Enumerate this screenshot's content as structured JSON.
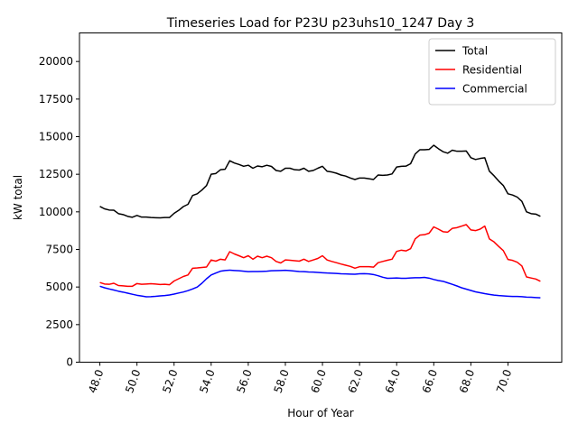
{
  "chart_data": {
    "type": "line",
    "title": "Timeseries Load for P23U p23uhs10_1247  Day 3",
    "xlabel": "Hour of Year",
    "ylabel": "kW total",
    "xlim": [
      46.9,
      72.9
    ],
    "ylim": [
      0,
      21900
    ],
    "x_ticks": [
      48,
      50,
      52,
      54,
      56,
      58,
      60,
      62,
      64,
      66,
      68,
      70
    ],
    "x_tick_labels": [
      "48.0",
      "50.0",
      "52.0",
      "54.0",
      "56.0",
      "58.0",
      "60.0",
      "62.0",
      "64.0",
      "66.0",
      "68.0",
      "70.0"
    ],
    "y_ticks": [
      0,
      2500,
      5000,
      7500,
      10000,
      12500,
      15000,
      17500,
      20000
    ],
    "y_tick_labels": [
      "0",
      "2500",
      "5000",
      "7500",
      "10000",
      "12500",
      "15000",
      "17500",
      "20000"
    ],
    "legend_position": "top-right",
    "x_start": 48,
    "x_step": 0.25,
    "series": [
      {
        "name": "Total",
        "color": "#000000",
        "values": [
          10360,
          10200,
          10120,
          10110,
          9880,
          9820,
          9700,
          9640,
          9760,
          9650,
          9650,
          9620,
          9610,
          9600,
          9620,
          9620,
          9900,
          10100,
          10350,
          10500,
          11090,
          11200,
          11450,
          11750,
          12500,
          12550,
          12800,
          12830,
          13400,
          13250,
          13150,
          13030,
          13100,
          12900,
          13050,
          13000,
          13100,
          13020,
          12750,
          12700,
          12900,
          12900,
          12800,
          12780,
          12900,
          12700,
          12750,
          12900,
          13030,
          12700,
          12650,
          12570,
          12450,
          12380,
          12250,
          12150,
          12250,
          12250,
          12200,
          12150,
          12450,
          12430,
          12450,
          12520,
          12980,
          13030,
          13040,
          13200,
          13850,
          14130,
          14130,
          14150,
          14430,
          14200,
          14000,
          13900,
          14100,
          14030,
          14030,
          14050,
          13600,
          13480,
          13550,
          13600,
          12700,
          12400,
          12050,
          11750,
          11200,
          11120,
          10980,
          10700,
          10000,
          9880,
          9850,
          9700
        ]
      },
      {
        "name": "Residential",
        "color": "#ff0000",
        "values": [
          5300,
          5200,
          5180,
          5250,
          5100,
          5080,
          5050,
          5050,
          5230,
          5180,
          5200,
          5220,
          5200,
          5170,
          5180,
          5150,
          5400,
          5550,
          5700,
          5800,
          6250,
          6270,
          6300,
          6330,
          6800,
          6720,
          6850,
          6800,
          7350,
          7200,
          7080,
          6950,
          7080,
          6850,
          7050,
          6950,
          7050,
          6950,
          6700,
          6600,
          6800,
          6780,
          6750,
          6720,
          6850,
          6700,
          6800,
          6900,
          7080,
          6800,
          6700,
          6620,
          6530,
          6450,
          6370,
          6250,
          6350,
          6350,
          6350,
          6320,
          6620,
          6700,
          6780,
          6850,
          7370,
          7450,
          7400,
          7550,
          8200,
          8450,
          8480,
          8580,
          9000,
          8850,
          8680,
          8650,
          8900,
          8950,
          9050,
          9150,
          8800,
          8750,
          8850,
          9050,
          8200,
          8000,
          7700,
          7420,
          6830,
          6770,
          6650,
          6400,
          5670,
          5600,
          5530,
          5380
        ]
      },
      {
        "name": "Commercial",
        "color": "#0000ff",
        "values": [
          5050,
          4950,
          4870,
          4800,
          4720,
          4660,
          4590,
          4520,
          4450,
          4400,
          4350,
          4360,
          4380,
          4410,
          4430,
          4470,
          4530,
          4600,
          4670,
          4760,
          4870,
          5000,
          5250,
          5550,
          5800,
          5930,
          6050,
          6100,
          6120,
          6100,
          6080,
          6050,
          6020,
          6030,
          6030,
          6040,
          6050,
          6080,
          6090,
          6100,
          6110,
          6090,
          6060,
          6030,
          6020,
          6000,
          5990,
          5970,
          5950,
          5930,
          5920,
          5900,
          5880,
          5870,
          5860,
          5850,
          5880,
          5890,
          5870,
          5830,
          5750,
          5650,
          5580,
          5590,
          5600,
          5580,
          5580,
          5600,
          5620,
          5620,
          5640,
          5590,
          5500,
          5430,
          5380,
          5280,
          5180,
          5070,
          4950,
          4860,
          4770,
          4680,
          4620,
          4560,
          4510,
          4460,
          4430,
          4410,
          4390,
          4370,
          4370,
          4360,
          4330,
          4320,
          4300,
          4280
        ]
      }
    ]
  }
}
